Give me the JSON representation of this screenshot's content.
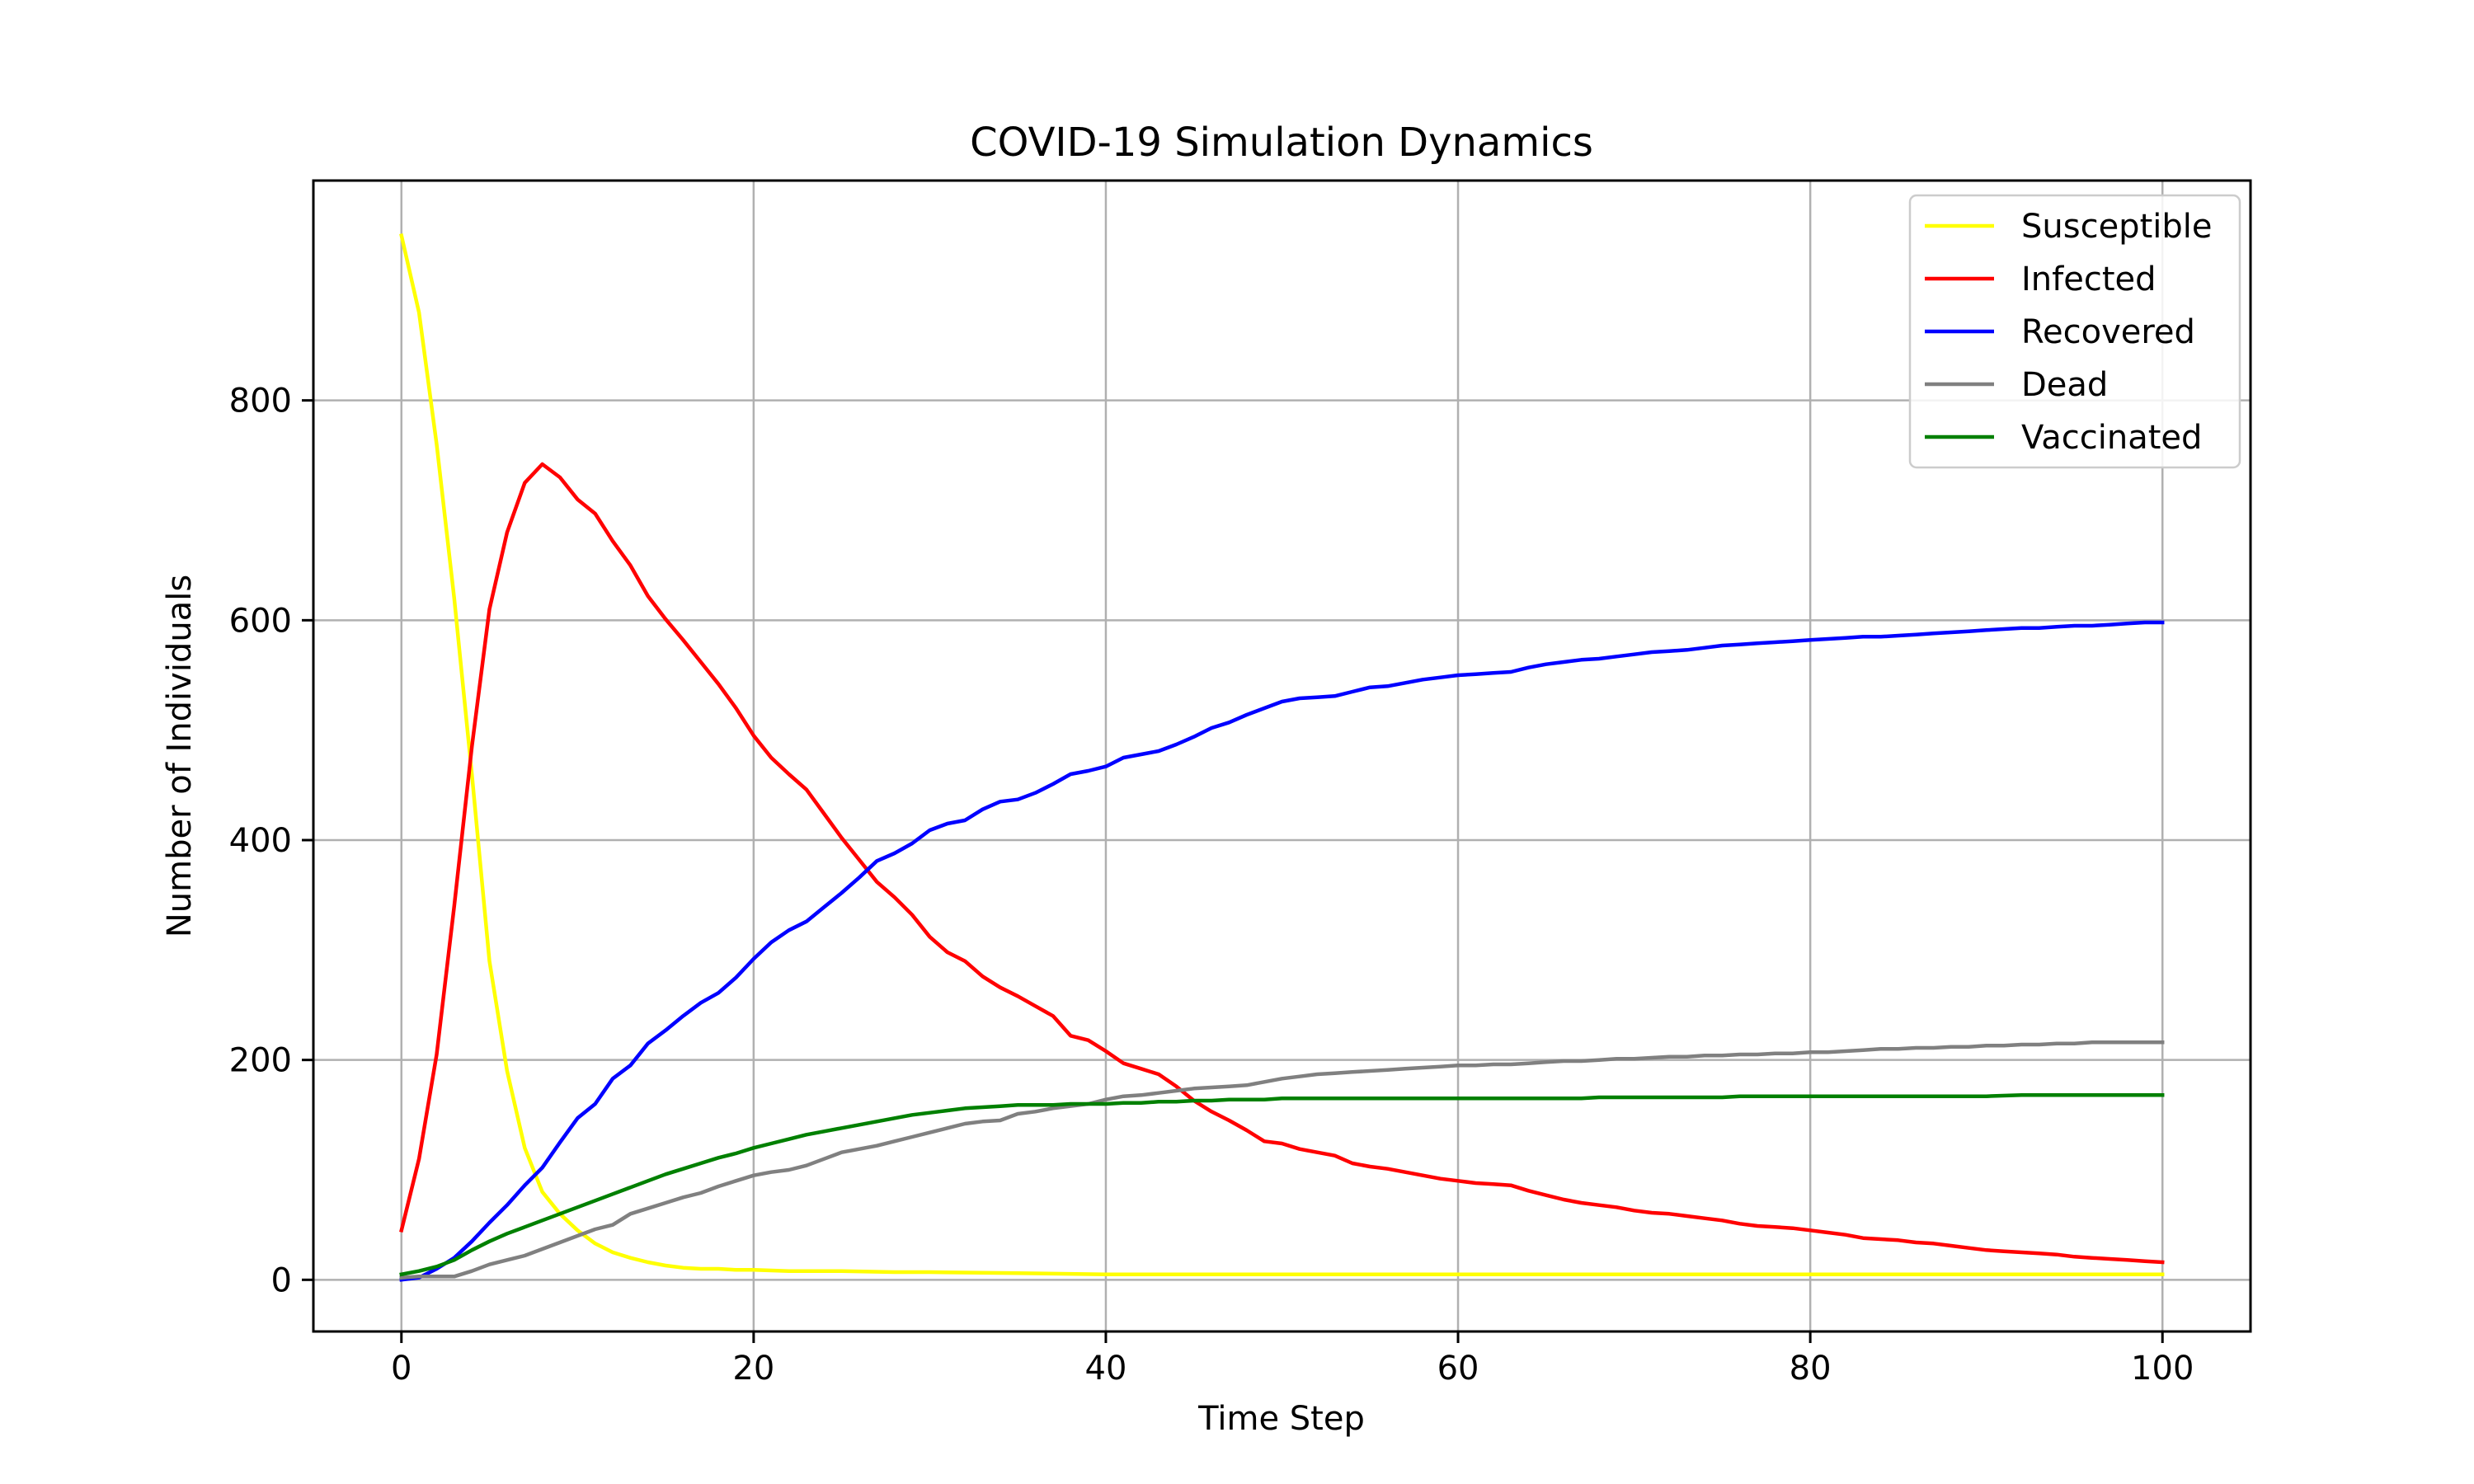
{
  "chart_data": {
    "type": "line",
    "title": "COVID-19 Simulation Dynamics",
    "xlabel": "Time Step",
    "ylabel": "Number of Individuals",
    "xlim": [
      -5,
      105
    ],
    "ylim": [
      -47,
      1000
    ],
    "xticks": [
      0,
      20,
      40,
      60,
      80,
      100
    ],
    "yticks": [
      0,
      200,
      400,
      600,
      800
    ],
    "grid": true,
    "legend_position": "top-right",
    "series": [
      {
        "name": "Susceptible",
        "color": "#ffff00",
        "x": [
          0,
          1,
          2,
          3,
          4,
          5,
          6,
          7,
          8,
          9,
          10,
          11,
          12,
          13,
          14,
          15,
          16,
          17,
          18,
          19,
          20,
          22,
          25,
          28,
          30,
          35,
          40,
          50,
          60,
          70,
          80,
          90,
          100
        ],
        "y": [
          950,
          880,
          760,
          620,
          460,
          290,
          190,
          120,
          80,
          60,
          45,
          33,
          25,
          20,
          16,
          13,
          11,
          10,
          10,
          9,
          9,
          8,
          8,
          7,
          7,
          6,
          5,
          5,
          5,
          5,
          5,
          5,
          5
        ]
      },
      {
        "name": "Infected",
        "color": "#ff0000",
        "x": [
          0,
          1,
          2,
          3,
          4,
          5,
          6,
          7,
          8,
          9,
          10,
          11,
          12,
          13,
          14,
          15,
          16,
          17,
          18,
          19,
          20,
          21,
          22,
          23,
          24,
          25,
          26,
          27,
          28,
          29,
          30,
          31,
          32,
          33,
          34,
          35,
          36,
          37,
          38,
          39,
          40,
          41,
          42,
          43,
          44,
          45,
          46,
          47,
          48,
          49,
          50,
          51,
          52,
          53,
          54,
          55,
          56,
          57,
          58,
          59,
          60,
          61,
          62,
          63,
          64,
          65,
          66,
          67,
          68,
          69,
          70,
          71,
          72,
          73,
          74,
          75,
          76,
          77,
          78,
          79,
          80,
          81,
          82,
          83,
          84,
          85,
          86,
          87,
          88,
          89,
          90,
          91,
          92,
          93,
          94,
          95,
          96,
          97,
          98,
          99,
          100
        ],
        "y": [
          45,
          110,
          205,
          340,
          485,
          610,
          680,
          725,
          742,
          730,
          710,
          697,
          672,
          650,
          622,
          601,
          582,
          562,
          542,
          520,
          495,
          475,
          460,
          446,
          424,
          402,
          382,
          362,
          348,
          332,
          312,
          298,
          290,
          276,
          266,
          258,
          249,
          240,
          222,
          218,
          208,
          197,
          192,
          187,
          176,
          163,
          153,
          145,
          136,
          126,
          124,
          119,
          116,
          113,
          106,
          103,
          101,
          98,
          95,
          92,
          90,
          88,
          87,
          86,
          81,
          77,
          73,
          70,
          68,
          66,
          63,
          61,
          60,
          58,
          56,
          54,
          51,
          49,
          48,
          47,
          45,
          43,
          41,
          38,
          37,
          36,
          34,
          33,
          31,
          29,
          27,
          26,
          25,
          24,
          23,
          21,
          20,
          19,
          18,
          17,
          16
        ]
      },
      {
        "name": "Recovered",
        "color": "#0000ff",
        "x": [
          0,
          1,
          2,
          3,
          4,
          5,
          6,
          7,
          8,
          9,
          10,
          11,
          12,
          13,
          14,
          15,
          16,
          17,
          18,
          19,
          20,
          21,
          22,
          23,
          24,
          25,
          26,
          27,
          28,
          29,
          30,
          31,
          32,
          33,
          34,
          35,
          36,
          37,
          38,
          39,
          40,
          41,
          42,
          43,
          44,
          45,
          46,
          47,
          48,
          49,
          50,
          51,
          52,
          53,
          54,
          55,
          56,
          57,
          58,
          59,
          60,
          61,
          62,
          63,
          64,
          65,
          66,
          67,
          68,
          69,
          70,
          71,
          72,
          73,
          74,
          75,
          76,
          77,
          78,
          79,
          80,
          81,
          82,
          83,
          84,
          85,
          86,
          87,
          88,
          89,
          90,
          91,
          92,
          93,
          94,
          95,
          96,
          97,
          98,
          99,
          100
        ],
        "y": [
          0,
          2,
          10,
          20,
          35,
          52,
          68,
          86,
          102,
          125,
          147,
          160,
          183,
          195,
          215,
          227,
          240,
          252,
          261,
          275,
          292,
          307,
          318,
          326,
          339,
          352,
          366,
          381,
          388,
          397,
          409,
          415,
          418,
          428,
          435,
          437,
          443,
          451,
          460,
          463,
          467,
          475,
          478,
          481,
          487,
          494,
          502,
          507,
          514,
          520,
          526,
          529,
          530,
          531,
          535,
          539,
          540,
          543,
          546,
          548,
          550,
          551,
          552,
          553,
          557,
          560,
          562,
          564,
          565,
          567,
          569,
          571,
          572,
          573,
          575,
          577,
          578,
          579,
          580,
          581,
          582,
          583,
          584,
          585,
          585,
          586,
          587,
          588,
          589,
          590,
          591,
          592,
          593,
          593,
          594,
          595,
          595,
          596,
          597,
          598,
          598
        ]
      },
      {
        "name": "Dead",
        "color": "#808080",
        "x": [
          0,
          1,
          2,
          3,
          4,
          5,
          6,
          7,
          8,
          9,
          10,
          11,
          12,
          13,
          14,
          15,
          16,
          17,
          18,
          19,
          20,
          21,
          22,
          23,
          24,
          25,
          26,
          27,
          28,
          29,
          30,
          31,
          32,
          33,
          34,
          35,
          36,
          37,
          38,
          39,
          40,
          41,
          42,
          43,
          44,
          45,
          46,
          47,
          48,
          49,
          50,
          51,
          52,
          53,
          54,
          55,
          56,
          57,
          58,
          59,
          60,
          61,
          62,
          63,
          64,
          65,
          66,
          67,
          68,
          69,
          70,
          71,
          72,
          73,
          74,
          75,
          76,
          77,
          78,
          79,
          80,
          81,
          82,
          83,
          84,
          85,
          86,
          87,
          88,
          89,
          90,
          91,
          92,
          93,
          94,
          95,
          96,
          97,
          98,
          99,
          100
        ],
        "y": [
          2,
          3,
          3,
          3,
          8,
          14,
          18,
          22,
          28,
          34,
          40,
          46,
          50,
          60,
          65,
          70,
          75,
          79,
          85,
          90,
          95,
          98,
          100,
          104,
          110,
          116,
          119,
          122,
          126,
          130,
          134,
          138,
          142,
          144,
          145,
          151,
          153,
          156,
          158,
          160,
          164,
          167,
          168,
          170,
          172,
          174,
          175,
          176,
          177,
          180,
          183,
          185,
          187,
          188,
          189,
          190,
          191,
          192,
          193,
          194,
          195,
          195,
          196,
          196,
          197,
          198,
          199,
          199,
          200,
          201,
          201,
          202,
          203,
          203,
          204,
          204,
          205,
          205,
          206,
          206,
          207,
          207,
          208,
          209,
          210,
          210,
          211,
          211,
          212,
          212,
          213,
          213,
          214,
          214,
          215,
          215,
          216,
          216,
          216,
          216,
          216
        ]
      },
      {
        "name": "Vaccinated",
        "color": "#008000",
        "x": [
          0,
          1,
          2,
          3,
          4,
          5,
          6,
          7,
          8,
          9,
          10,
          11,
          12,
          13,
          14,
          15,
          16,
          17,
          18,
          19,
          20,
          21,
          22,
          23,
          24,
          25,
          26,
          27,
          28,
          29,
          30,
          31,
          32,
          33,
          34,
          35,
          36,
          37,
          38,
          39,
          40,
          41,
          42,
          43,
          44,
          45,
          46,
          47,
          48,
          49,
          50,
          55,
          60,
          65,
          67,
          68,
          75,
          76,
          80,
          85,
          90,
          92,
          95,
          100
        ],
        "y": [
          5,
          8,
          12,
          18,
          27,
          35,
          42,
          48,
          54,
          60,
          66,
          72,
          78,
          84,
          90,
          96,
          101,
          106,
          111,
          115,
          120,
          124,
          128,
          132,
          135,
          138,
          141,
          144,
          147,
          150,
          152,
          154,
          156,
          157,
          158,
          159,
          159,
          159,
          160,
          160,
          160,
          161,
          161,
          162,
          162,
          163,
          163,
          164,
          164,
          164,
          165,
          165,
          165,
          165,
          165,
          166,
          166,
          167,
          167,
          167,
          167,
          168,
          168,
          168
        ]
      }
    ]
  }
}
